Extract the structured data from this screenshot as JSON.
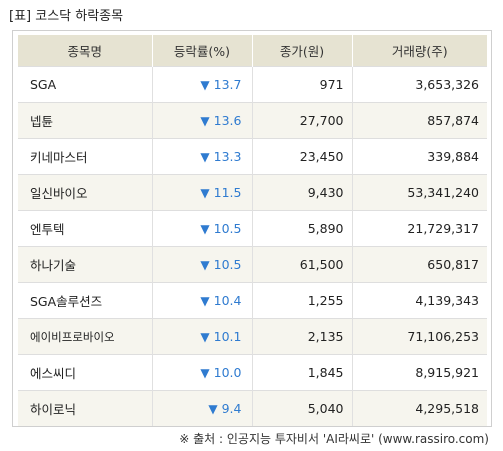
{
  "title": "[표] 코스닥 하락종목",
  "table": {
    "headers": [
      "종목명",
      "등락률(%)",
      "종가(원)",
      "거래량(주)"
    ],
    "down_arrow": "▼",
    "rows": [
      {
        "name": "SGA",
        "rate": "13.7",
        "close": "971",
        "volume": "3,653,326"
      },
      {
        "name": "넵튠",
        "rate": "13.6",
        "close": "27,700",
        "volume": "857,874"
      },
      {
        "name": "키네마스터",
        "rate": "13.3",
        "close": "23,450",
        "volume": "339,884"
      },
      {
        "name": "일신바이오",
        "rate": "11.5",
        "close": "9,430",
        "volume": "53,341,240"
      },
      {
        "name": "엔투텍",
        "rate": "10.5",
        "close": "5,890",
        "volume": "21,729,317"
      },
      {
        "name": "하나기술",
        "rate": "10.5",
        "close": "61,500",
        "volume": "650,817"
      },
      {
        "name": "SGA솔루션즈",
        "rate": "10.4",
        "close": "1,255",
        "volume": "4,139,343"
      },
      {
        "name": "에이비프로바이오",
        "rate": "10.1",
        "close": "2,135",
        "volume": "71,106,253"
      },
      {
        "name": "에스씨디",
        "rate": "10.0",
        "close": "1,845",
        "volume": "8,915,921"
      },
      {
        "name": "하이로닉",
        "rate": "9.4",
        "close": "5,040",
        "volume": "4,295,518"
      }
    ]
  },
  "source": "※ 출처 : 인공지능 투자비서 'AI라씨로' (www.rassiro.com)",
  "colors": {
    "header_bg": "#e6e3d2",
    "alt_row_bg": "#f6f5ee",
    "decline": "#2f7bd0"
  }
}
